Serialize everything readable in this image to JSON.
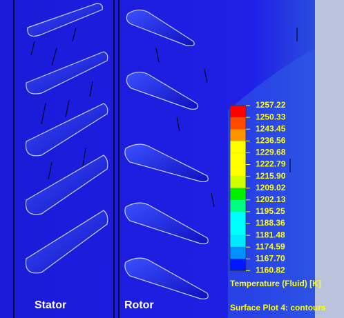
{
  "labels": {
    "stator": "Stator",
    "rotor": "Rotor"
  },
  "legend": {
    "values": [
      "1257.22",
      "1250.33",
      "1243.45",
      "1236.56",
      "1229.68",
      "1222.79",
      "1215.90",
      "1209.02",
      "1202.13",
      "1195.25",
      "1188.36",
      "1181.48",
      "1174.59",
      "1167.70",
      "1160.82"
    ],
    "colors": [
      "#ff0000",
      "#ff4a00",
      "#ff9400",
      "#ffff00",
      "#ffff00",
      "#ffff00",
      "#d0ff00",
      "#00ee00",
      "#00ff80",
      "#00ffff",
      "#00ffff",
      "#00e8ff",
      "#0090ff",
      "#0018ff"
    ],
    "title": "Temperature (Fluid) [K]",
    "caption": "Surface Plot 4: contours"
  }
}
